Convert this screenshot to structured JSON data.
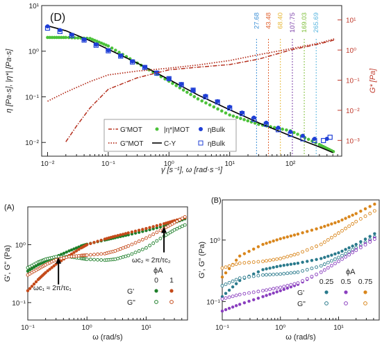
{
  "chart_data": [
    {
      "type": "line",
      "panel_label": "(D)",
      "xlabel": "γ̇ [s⁻¹], ω [rad·s⁻¹]",
      "ylabel_left": "η [Pa·s], |η*| [Pa·s]",
      "ylabel_right": "G* [Pa]",
      "x_scale": "log",
      "y_scale": "log",
      "xlim": [
        0.008,
        700
      ],
      "ylim_left": [
        0.005,
        10
      ],
      "ylim_right": [
        0.0003,
        30
      ],
      "x_ticks": [
        "10⁻²",
        "10⁻¹",
        "10⁰",
        "10¹",
        "10²"
      ],
      "y_ticks_left": [
        "10⁻²",
        "10⁻¹",
        "10⁰",
        "10¹"
      ],
      "y_ticks_right": [
        "10⁻³",
        "10⁻²",
        "10⁻¹",
        "10⁰",
        "10¹"
      ],
      "colors": {
        "G_prime": "#b5301f",
        "G_double_prime": "#b5301f",
        "eta_mot": "#4cc23a",
        "cy": "#000000",
        "bulk": "#1f3fd6",
        "right_axis": "#c0392b"
      },
      "vertical_markers": [
        {
          "value": 27.68,
          "label": "27.68",
          "color": "#3b8fd6"
        },
        {
          "value": 43.48,
          "label": "43.48",
          "color": "#e0612f"
        },
        {
          "value": 68.4,
          "label": "68.40",
          "color": "#e8b93a"
        },
        {
          "value": 107.75,
          "label": "107.75",
          "color": "#7b3fa8"
        },
        {
          "value": 169.03,
          "label": "169.03",
          "color": "#7fbf3a"
        },
        {
          "value": 265.69,
          "label": "265.69",
          "color": "#5ab6e0"
        }
      ],
      "legend": [
        {
          "label": "G'MOT",
          "style": "dash-dot"
        },
        {
          "label": "|η*|MOT",
          "style": "green-dots"
        },
        {
          "label": "ηBulk",
          "style": "filled-circle"
        },
        {
          "label": "G\"MOT",
          "style": "dotted"
        },
        {
          "label": "C-Y",
          "style": "solid"
        },
        {
          "label": "ηBulk",
          "style": "open-square"
        }
      ],
      "series": [
        {
          "name": "|η*|MOT",
          "axis": "left",
          "x": [
            0.01,
            0.02,
            0.05,
            0.1,
            0.3,
            1,
            3,
            10,
            30,
            100,
            300,
            550
          ],
          "y": [
            2.0,
            2.0,
            1.9,
            1.3,
            0.55,
            0.22,
            0.09,
            0.04,
            0.025,
            0.018,
            0.009,
            0.006
          ]
        },
        {
          "name": "C-Y",
          "axis": "left",
          "x": [
            0.01,
            0.02,
            0.05,
            0.1,
            0.3,
            1,
            3,
            10,
            30,
            100,
            300,
            500
          ],
          "y": [
            3.6,
            2.8,
            1.7,
            1.1,
            0.55,
            0.24,
            0.11,
            0.052,
            0.027,
            0.014,
            0.008,
            0.006
          ]
        },
        {
          "name": "ηBulk (filled)",
          "axis": "left",
          "x": [
            0.01,
            0.016,
            0.025,
            0.04,
            0.063,
            0.1,
            0.16,
            0.25,
            0.4,
            0.63,
            1,
            1.6,
            2.5,
            4,
            6.3,
            10,
            16,
            25,
            40,
            63,
            100,
            160,
            250,
            400
          ],
          "y": [
            3.5,
            2.9,
            2.3,
            1.8,
            1.4,
            1.05,
            0.8,
            0.6,
            0.45,
            0.34,
            0.25,
            0.19,
            0.14,
            0.105,
            0.08,
            0.06,
            0.045,
            0.035,
            0.027,
            0.021,
            0.017,
            0.014,
            0.012,
            0.012
          ]
        },
        {
          "name": "ηBulk (open)",
          "axis": "left",
          "x": [
            0.01,
            0.016,
            0.025,
            0.04,
            0.063,
            0.1,
            0.16,
            0.25,
            0.4,
            0.63,
            1,
            1.6,
            2.5,
            4,
            6.3,
            10,
            16,
            25,
            40,
            63,
            100,
            160,
            250,
            350,
            450
          ],
          "y": [
            3.2,
            2.7,
            2.2,
            1.75,
            1.35,
            1.02,
            0.78,
            0.58,
            0.44,
            0.33,
            0.25,
            0.185,
            0.14,
            0.1,
            0.077,
            0.057,
            0.043,
            0.032,
            0.025,
            0.019,
            0.015,
            0.012,
            0.011,
            0.011,
            0.013
          ]
        },
        {
          "name": "G'MOT",
          "axis": "right",
          "x": [
            0.02,
            0.03,
            0.05,
            0.1,
            0.3,
            1,
            3,
            10,
            30,
            100,
            300,
            550
          ],
          "y": [
            0.0009,
            0.003,
            0.012,
            0.05,
            0.12,
            0.22,
            0.27,
            0.33,
            0.5,
            1.0,
            1.6,
            2.2
          ]
        },
        {
          "name": "G\"MOT",
          "axis": "right",
          "x": [
            0.01,
            0.02,
            0.05,
            0.1,
            0.3,
            1,
            3,
            10,
            30,
            100,
            300,
            550
          ],
          "y": [
            0.02,
            0.04,
            0.09,
            0.15,
            0.2,
            0.25,
            0.32,
            0.45,
            0.7,
            1.1,
            1.7,
            2.4
          ]
        }
      ]
    },
    {
      "type": "scatter",
      "panel_label": "(A)",
      "xlabel": "ω (rad/s)",
      "ylabel": "G', G\" (Pa)",
      "x_scale": "log",
      "y_scale": "log",
      "xlim": [
        0.1,
        50
      ],
      "ylim": [
        0.05,
        4.5
      ],
      "x_ticks": [
        "10⁻¹",
        "10⁰",
        "10¹"
      ],
      "y_ticks": [
        "10⁻¹",
        "10⁰"
      ],
      "legend_title": "ϕA",
      "legend_cols": [
        "0",
        "1"
      ],
      "legend_rows": [
        "G'",
        "G\""
      ],
      "annotations": [
        {
          "text": "ωc₁ ≈ 2π/τc₁",
          "x": 0.3,
          "y": 0.55
        },
        {
          "text": "ωc₂ ≈ 2π/τc₂",
          "x": 20,
          "y": 1.7
        }
      ],
      "series": [
        {
          "name": "G' ϕA=0",
          "color": "#1e7f2a",
          "filled": true,
          "x": [
            0.1,
            0.15,
            0.2,
            0.3,
            0.5,
            0.8,
            1,
            2,
            3,
            5,
            10,
            20,
            30,
            50
          ],
          "y": [
            0.35,
            0.45,
            0.52,
            0.62,
            0.78,
            0.95,
            1.02,
            1.2,
            1.32,
            1.48,
            1.75,
            2.1,
            2.4,
            2.9
          ]
        },
        {
          "name": "G\" ϕA=0",
          "color": "#1e7f2a",
          "filled": false,
          "x": [
            0.1,
            0.15,
            0.2,
            0.3,
            0.5,
            0.8,
            1,
            2,
            3,
            5,
            10,
            20,
            30,
            50
          ],
          "y": [
            0.4,
            0.5,
            0.56,
            0.62,
            0.62,
            0.58,
            0.56,
            0.54,
            0.56,
            0.65,
            0.88,
            1.4,
            1.8,
            2.3
          ]
        },
        {
          "name": "G' ϕA=1",
          "color": "#c44a1a",
          "filled": true,
          "x": [
            0.1,
            0.15,
            0.2,
            0.3,
            0.5,
            0.8,
            1,
            2,
            3,
            5,
            10,
            20,
            30,
            50
          ],
          "y": [
            0.16,
            0.25,
            0.33,
            0.46,
            0.65,
            0.88,
            1.0,
            1.25,
            1.4,
            1.6,
            1.9,
            2.3,
            2.6,
            3.0
          ]
        },
        {
          "name": "G\" ϕA=1",
          "color": "#c44a1a",
          "filled": false,
          "x": [
            0.1,
            0.15,
            0.2,
            0.3,
            0.5,
            0.8,
            1,
            2,
            3,
            5,
            10,
            20,
            30,
            50
          ],
          "y": [
            0.3,
            0.38,
            0.45,
            0.55,
            0.62,
            0.65,
            0.66,
            0.7,
            0.78,
            0.95,
            1.3,
            1.9,
            2.4,
            3.2
          ]
        }
      ]
    },
    {
      "type": "scatter",
      "panel_label": "(B)",
      "ylabel": "G', G\" (Pa)",
      "xlabel": "ω (rad/s)",
      "x_scale": "log",
      "y_scale": "log",
      "xlim": [
        0.1,
        50
      ],
      "ylim": [
        0.05,
        4.5
      ],
      "x_ticks": [
        "10⁻¹",
        "10⁰",
        "10¹"
      ],
      "y_ticks": [
        "10⁻¹",
        "10⁰"
      ],
      "legend_title": "ϕA",
      "legend_cols": [
        "0.25",
        "0.5",
        "0.75"
      ],
      "legend_rows": [
        "G'",
        "G\""
      ],
      "series": [
        {
          "name": "G' ϕA=0.25",
          "color": "#2a7a8c",
          "filled": true,
          "x": [
            0.1,
            0.2,
            0.5,
            1,
            2,
            5,
            10,
            20,
            50
          ],
          "y": [
            0.12,
            0.22,
            0.33,
            0.38,
            0.42,
            0.5,
            0.62,
            0.85,
            1.4
          ]
        },
        {
          "name": "G\" ϕA=0.25",
          "color": "#2a7a8c",
          "filled": false,
          "x": [
            0.1,
            0.2,
            0.5,
            1,
            2,
            5,
            10,
            20,
            50
          ],
          "y": [
            0.18,
            0.24,
            0.27,
            0.28,
            0.3,
            0.38,
            0.52,
            0.75,
            1.25
          ]
        },
        {
          "name": "G' ϕA=0.5",
          "color": "#8a3fbf",
          "filled": true,
          "x": [
            0.1,
            0.2,
            0.5,
            1,
            2,
            5,
            10,
            20,
            50
          ],
          "y": [
            0.07,
            0.09,
            0.12,
            0.15,
            0.19,
            0.3,
            0.45,
            0.7,
            1.2
          ]
        },
        {
          "name": "G\" ϕA=0.5",
          "color": "#8a3fbf",
          "filled": false,
          "x": [
            0.1,
            0.2,
            0.5,
            1,
            2,
            5,
            10,
            20,
            50
          ],
          "y": [
            0.11,
            0.13,
            0.15,
            0.17,
            0.2,
            0.3,
            0.45,
            0.68,
            1.15
          ]
        },
        {
          "name": "G' ϕA=0.75",
          "color": "#d9861c",
          "filled": true,
          "x": [
            0.1,
            0.2,
            0.5,
            1,
            2,
            5,
            10,
            20,
            50
          ],
          "y": [
            0.25,
            0.55,
            0.85,
            1.05,
            1.25,
            1.6,
            2.0,
            2.7,
            4.2
          ]
        },
        {
          "name": "G\" ϕA=0.75",
          "color": "#d9861c",
          "filled": false,
          "x": [
            0.1,
            0.2,
            0.5,
            1,
            2,
            5,
            10,
            20,
            50
          ],
          "y": [
            0.35,
            0.42,
            0.45,
            0.5,
            0.6,
            0.85,
            1.3,
            2.0,
            3.3
          ]
        }
      ]
    }
  ]
}
